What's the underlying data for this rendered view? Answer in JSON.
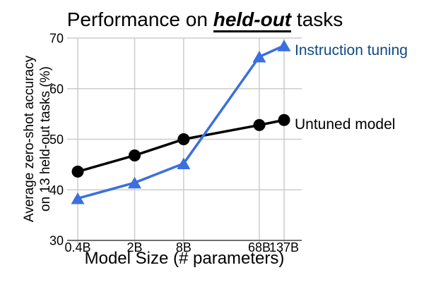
{
  "title": {
    "prefix": "Performance on ",
    "emphasis": "held-out",
    "suffix": " tasks"
  },
  "chart_data": {
    "type": "line",
    "x_scale": "log",
    "categories": [
      "0.4B",
      "2B",
      "8B",
      "68B",
      "137B"
    ],
    "x_values": [
      0.4,
      2,
      8,
      68,
      137
    ],
    "series": [
      {
        "name": "Untuned model",
        "marker": "circle",
        "color": "#000000",
        "label_color": "#000000",
        "values": [
          43.6,
          46.8,
          50.0,
          52.8,
          53.8
        ]
      },
      {
        "name": "Instruction tuning",
        "marker": "triangle",
        "color": "#3b6fe0",
        "label_color": "#0d4a81",
        "values": [
          38.3,
          41.4,
          45.2,
          66.3,
          68.5
        ]
      }
    ],
    "xlabel": "Model Size (# parameters)",
    "ylabel_line1": "Average zero-shot accuracy",
    "ylabel_line2": "on 13 held-out tasks (%)",
    "ylim": [
      30,
      70
    ],
    "yticks": [
      30,
      40,
      50,
      60,
      70
    ],
    "grid": true,
    "legend_position": "right-of-last-point"
  },
  "colors": {
    "gridline": "#cccccc",
    "axis_line": "#707070",
    "background": "#ffffff",
    "text": "#000000"
  }
}
